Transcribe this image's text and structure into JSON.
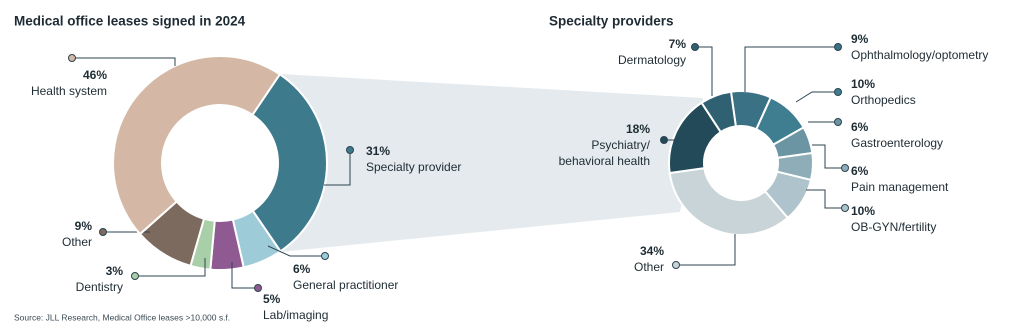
{
  "chart_data": [
    {
      "type": "donut",
      "title": "Medical office leases signed in 2024",
      "categories": [
        "Specialty provider",
        "General practitioner",
        "Lab/imaging",
        "Dentistry",
        "Other",
        "Health system"
      ],
      "values": [
        31,
        6,
        5,
        3,
        9,
        46
      ],
      "value_labels": [
        "31%",
        "6%",
        "5%",
        "3%",
        "9%",
        "46%"
      ],
      "colors": [
        "#3d7a8c",
        "#9ecbd8",
        "#8f5a92",
        "#a9cfa8",
        "#7d6a5e",
        "#d4b8a5"
      ]
    },
    {
      "type": "donut",
      "title": "Specialty providers",
      "categories": [
        "Ophthalmology/optometry",
        "Orthopedics",
        "Gastroenterology",
        "Pain management",
        "OB-GYN/fertility",
        "Other",
        "Psychiatry/\nbehavioral health",
        "Dermatology"
      ],
      "values": [
        9,
        10,
        6,
        6,
        10,
        34,
        18,
        7
      ],
      "value_labels": [
        "9%",
        "10%",
        "6%",
        "6%",
        "10%",
        "34%",
        "18%",
        "7%"
      ],
      "colors": [
        "#3a7185",
        "#3f7d90",
        "#6b95a3",
        "#8fadb8",
        "#aec3cb",
        "#c9d4d8",
        "#234a58",
        "#2f6172"
      ]
    }
  ],
  "source": "Source: JLL Research, Medical Office leases >10,000 s.f."
}
